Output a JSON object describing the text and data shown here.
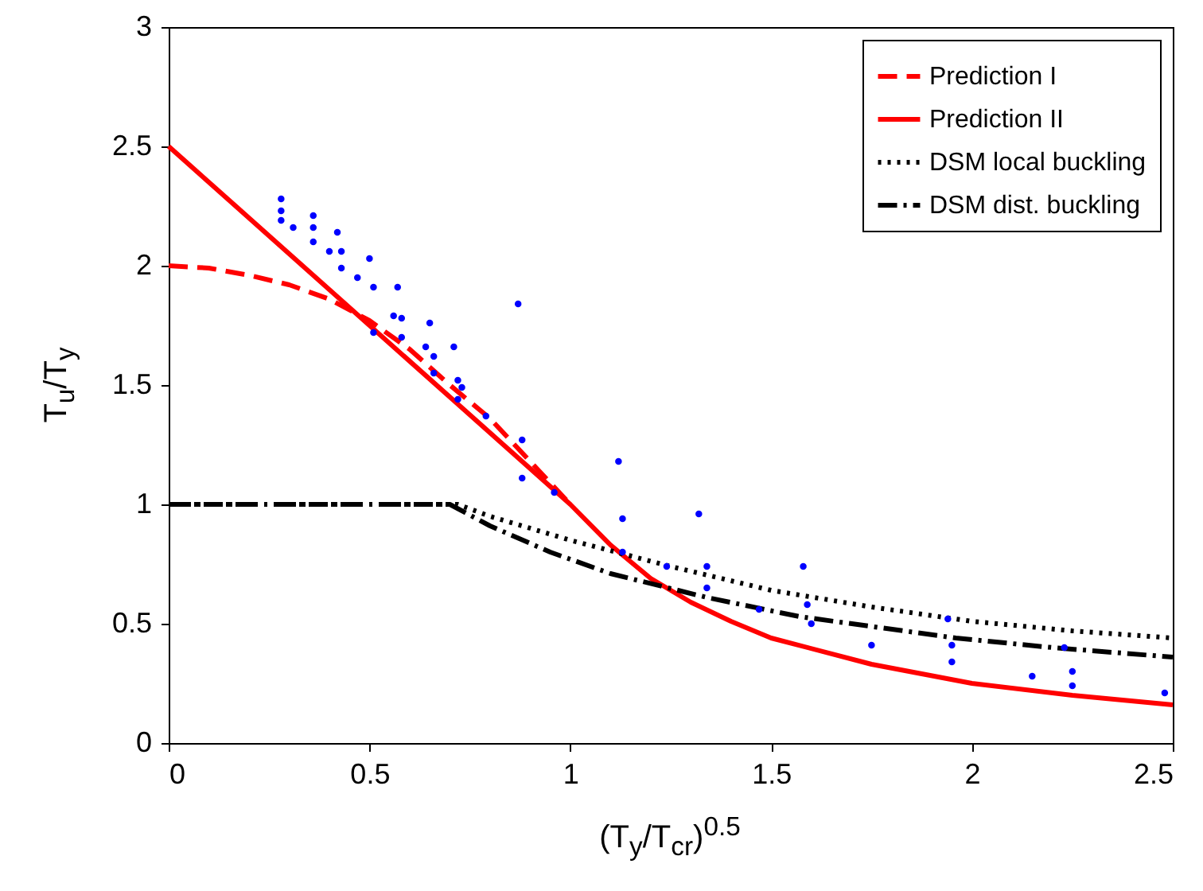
{
  "chart_data": {
    "type": "line",
    "xlabel": "(T$_{y}$/T$_{cr}$)$^{0.5}$",
    "ylabel": "T$_{u}$/T$_{y}$",
    "xlim": [
      0,
      2.5
    ],
    "ylim": [
      0,
      3
    ],
    "xticks": [
      0,
      0.5,
      1,
      1.5,
      2,
      2.5
    ],
    "yticks": [
      0,
      0.5,
      1,
      1.5,
      2,
      2.5,
      3
    ],
    "legend": "top right",
    "series": [
      {
        "type": "scatter",
        "marker": "circle",
        "color": "#0000ff",
        "x": [
          0.28,
          0.28,
          0.28,
          0.31,
          0.36,
          0.36,
          0.36,
          0.4,
          0.42,
          0.43,
          0.43,
          0.47,
          0.5,
          0.51,
          0.57,
          0.56,
          0.58,
          0.51,
          0.58,
          0.65,
          0.64,
          0.66,
          0.66,
          0.71,
          0.72,
          0.73,
          0.72,
          0.87,
          0.79,
          0.88,
          0.88,
          0.96,
          1.12,
          1.13,
          1.13,
          1.24,
          1.32,
          1.34,
          1.34,
          1.47,
          1.58,
          1.59,
          1.6,
          1.75,
          1.94,
          1.95,
          1.95,
          2.15,
          2.23,
          2.25,
          2.25,
          2.48
        ],
        "values": [
          2.28,
          2.23,
          2.19,
          2.16,
          2.21,
          2.16,
          2.1,
          2.06,
          2.14,
          2.06,
          1.99,
          1.95,
          2.03,
          1.91,
          1.91,
          1.79,
          1.78,
          1.72,
          1.7,
          1.76,
          1.66,
          1.62,
          1.55,
          1.66,
          1.52,
          1.49,
          1.44,
          1.84,
          1.37,
          1.27,
          1.11,
          1.05,
          1.18,
          0.94,
          0.8,
          0.74,
          0.96,
          0.74,
          0.65,
          0.56,
          0.74,
          0.58,
          0.5,
          0.41,
          0.52,
          0.41,
          0.34,
          0.28,
          0.4,
          0.3,
          0.24,
          0.21
        ]
      },
      {
        "name": "Prediction I",
        "line_style": "dashed",
        "color": "#ff0000",
        "x": [
          0,
          0.1,
          0.2,
          0.3,
          0.4,
          0.5,
          0.6,
          0.7,
          0.8,
          0.9,
          1.0
        ],
        "values": [
          2.0,
          1.99,
          1.96,
          1.92,
          1.86,
          1.77,
          1.65,
          1.5,
          1.36,
          1.18,
          1.0
        ]
      },
      {
        "name": "Prediction II",
        "line_style": "solid",
        "color": "#ff0000",
        "x": [
          0,
          1.0,
          1.1,
          1.2,
          1.3,
          1.4,
          1.5,
          1.75,
          2.0,
          2.25,
          2.5
        ],
        "values": [
          2.5,
          1.0,
          0.83,
          0.69,
          0.59,
          0.51,
          0.44,
          0.33,
          0.25,
          0.2,
          0.16
        ]
      },
      {
        "name": "DSM local buckling",
        "line_style": "dotted",
        "color": "#000000",
        "x": [
          0,
          0.72,
          0.8,
          1.0,
          1.25,
          1.5,
          1.75,
          2.0,
          2.25,
          2.5
        ],
        "values": [
          1.0,
          1.0,
          0.95,
          0.85,
          0.74,
          0.64,
          0.57,
          0.51,
          0.47,
          0.44
        ]
      },
      {
        "name": "DSM dist. buckling",
        "line_style": "dashdot",
        "color": "#000000",
        "x": [
          0,
          0.7,
          0.8,
          0.95,
          1.1,
          1.34,
          1.57,
          1.96,
          2.2,
          2.5
        ],
        "values": [
          1.0,
          1.0,
          0.91,
          0.8,
          0.71,
          0.61,
          0.53,
          0.44,
          0.4,
          0.36
        ]
      }
    ]
  }
}
